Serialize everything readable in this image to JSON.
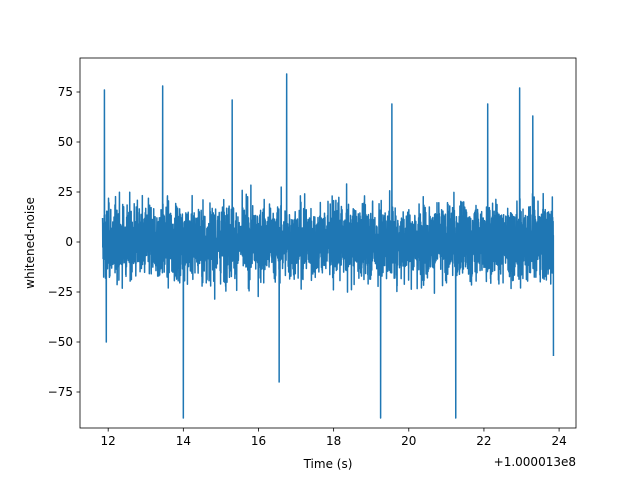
{
  "chart_data": {
    "type": "line",
    "title": "",
    "xlabel": "Time (s)",
    "ylabel": "whitened-noise",
    "x_offset_label": "+1.000013e8",
    "xlim": [
      11.25,
      24.45
    ],
    "ylim": [
      -93,
      92
    ],
    "x_ticks": [
      12,
      14,
      16,
      18,
      20,
      22,
      24
    ],
    "x_tick_labels": [
      "12",
      "14",
      "16",
      "18",
      "20",
      "22",
      "24"
    ],
    "y_ticks": [
      -75,
      -50,
      -25,
      0,
      25,
      50,
      75
    ],
    "y_tick_labels": [
      "−75",
      "−50",
      "−25",
      "0",
      "25",
      "50",
      "75"
    ],
    "grid": false,
    "series": [
      {
        "color": "#1f77b4",
        "x_range": [
          11.85,
          23.85
        ],
        "typical_envelope": [
          -45,
          45
        ],
        "peaks": [
          {
            "x": 11.9,
            "y": 76
          },
          {
            "x": 11.95,
            "y": -50
          },
          {
            "x": 13.45,
            "y": 78
          },
          {
            "x": 14.0,
            "y": -88
          },
          {
            "x": 15.3,
            "y": 71
          },
          {
            "x": 16.55,
            "y": -70
          },
          {
            "x": 16.75,
            "y": 84
          },
          {
            "x": 19.25,
            "y": -88
          },
          {
            "x": 19.55,
            "y": 69
          },
          {
            "x": 21.25,
            "y": -88
          },
          {
            "x": 22.1,
            "y": 69
          },
          {
            "x": 22.95,
            "y": 77
          },
          {
            "x": 23.3,
            "y": 63
          },
          {
            "x": 23.85,
            "y": -57
          }
        ]
      }
    ]
  }
}
